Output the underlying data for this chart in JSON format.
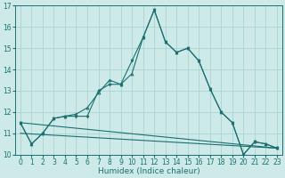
{
  "xlabel": "Humidex (Indice chaleur)",
  "xlim": [
    -0.5,
    23.5
  ],
  "ylim": [
    10,
    17
  ],
  "yticks": [
    10,
    11,
    12,
    13,
    14,
    15,
    16,
    17
  ],
  "xticks": [
    0,
    1,
    2,
    3,
    4,
    5,
    6,
    7,
    8,
    9,
    10,
    11,
    12,
    13,
    14,
    15,
    16,
    17,
    18,
    19,
    20,
    21,
    22,
    23
  ],
  "bg_color": "#ceeae8",
  "grid_color": "#aad4d2",
  "line_color": "#1a7070",
  "series1_y": [
    11.5,
    10.5,
    11.0,
    11.7,
    11.8,
    11.8,
    11.8,
    13.0,
    13.3,
    13.3,
    14.4,
    15.5,
    16.8,
    15.3,
    14.8,
    15.0,
    14.4,
    13.1,
    12.0,
    11.5,
    10.0,
    10.6,
    10.5,
    10.3
  ],
  "series2_y": [
    11.5,
    10.5,
    11.0,
    11.7,
    11.8,
    11.9,
    12.2,
    12.9,
    13.5,
    13.3,
    13.8,
    15.5,
    16.8,
    15.3,
    14.8,
    15.0,
    14.4,
    13.1,
    12.0,
    11.5,
    10.0,
    10.6,
    10.5,
    10.3
  ],
  "series3_y_start": 11.5,
  "series3_y_end": 10.3,
  "series4_y_start": 11.0,
  "series4_y_end": 10.3,
  "tick_fontsize": 5.5,
  "xlabel_fontsize": 6.5
}
